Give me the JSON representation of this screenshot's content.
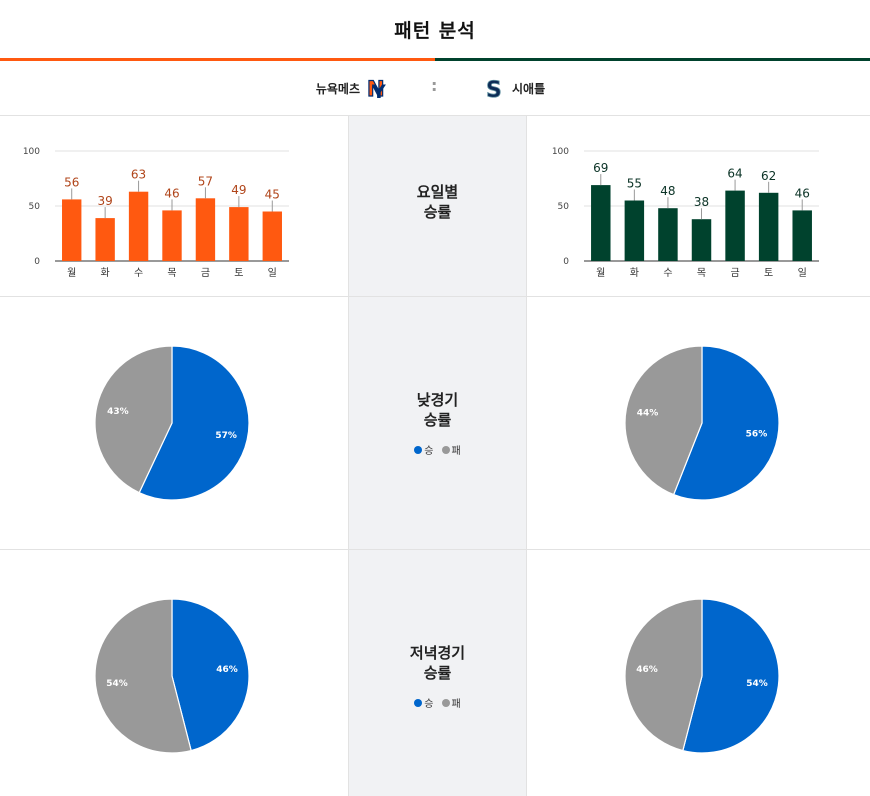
{
  "header": {
    "title": "패턴 분석"
  },
  "teams": {
    "home": {
      "name": "뉴욕메츠",
      "color": "#ff5910"
    },
    "separator": ":",
    "away": {
      "name": "시애틀",
      "color": "#00422d"
    }
  },
  "rows": {
    "weekday": {
      "label_line1": "요일별",
      "label_line2": "승률"
    },
    "day": {
      "label_line1": "낮경기",
      "label_line2": "승률"
    },
    "night": {
      "label_line1": "저녁경기",
      "label_line2": "승률"
    }
  },
  "legend": {
    "win": "승",
    "loss": "패",
    "win_color": "#0066cc",
    "loss_color": "#999999"
  },
  "chart_data": [
    {
      "type": "bar",
      "team": "뉴욕메츠",
      "categories": [
        "월",
        "화",
        "수",
        "목",
        "금",
        "토",
        "일"
      ],
      "values": [
        56,
        39,
        63,
        46,
        57,
        49,
        45
      ],
      "ylim": [
        0,
        100
      ],
      "yticks": [
        0,
        50,
        100
      ],
      "color": "#ff5910",
      "label_color": "#b0451a"
    },
    {
      "type": "bar",
      "team": "시애틀",
      "categories": [
        "월",
        "화",
        "수",
        "목",
        "금",
        "토",
        "일"
      ],
      "values": [
        69,
        55,
        48,
        38,
        64,
        62,
        46
      ],
      "ylim": [
        0,
        100
      ],
      "yticks": [
        0,
        50,
        100
      ],
      "color": "#00422d",
      "label_color": "#0b3326"
    },
    {
      "type": "pie",
      "team": "뉴욕메츠",
      "slices": [
        {
          "label": "승",
          "value": 57,
          "text": "57%"
        },
        {
          "label": "패",
          "value": 43,
          "text": "43%"
        }
      ]
    },
    {
      "type": "pie",
      "team": "시애틀",
      "slices": [
        {
          "label": "승",
          "value": 56,
          "text": "56%"
        },
        {
          "label": "패",
          "value": 44,
          "text": "44%"
        }
      ]
    },
    {
      "type": "pie",
      "team": "뉴욕메츠",
      "slices": [
        {
          "label": "승",
          "value": 46,
          "text": "46%"
        },
        {
          "label": "패",
          "value": 54,
          "text": "54%"
        }
      ]
    },
    {
      "type": "pie",
      "team": "시애틀",
      "slices": [
        {
          "label": "승",
          "value": 54,
          "text": "54%"
        },
        {
          "label": "패",
          "value": 46,
          "text": "46%"
        }
      ]
    }
  ]
}
